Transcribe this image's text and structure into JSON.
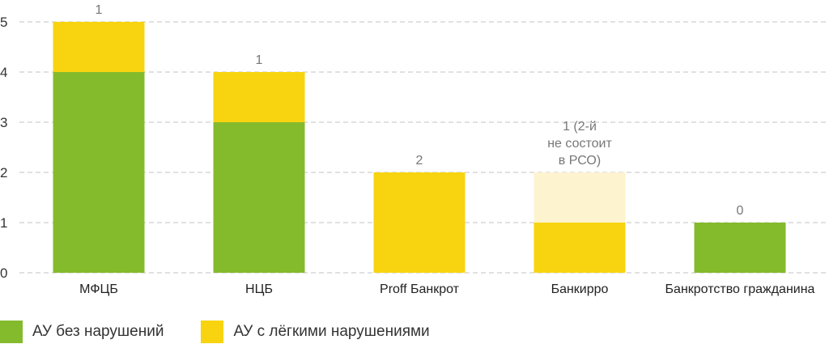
{
  "chart_data": {
    "type": "bar",
    "stacked": true,
    "categories": [
      "МФЦБ",
      "НЦБ",
      "Proff Банкрот",
      "Банкирро",
      "Банкротство гражданина"
    ],
    "series": [
      {
        "name": "АУ без нарушений",
        "values": [
          4,
          3,
          0,
          0,
          1
        ],
        "color": "#84bb2c"
      },
      {
        "name": "АУ с лёгкими нарушениями",
        "values": [
          1,
          1,
          2,
          1,
          0
        ],
        "color": "#f7d40f"
      },
      {
        "values": [
          0,
          0,
          0,
          1,
          0
        ],
        "color": "#fdf3cf"
      }
    ],
    "data_labels": [
      [
        "1"
      ],
      [
        "1"
      ],
      [
        "2"
      ],
      [
        "1 (2-й",
        "не состоит",
        "в РСО)"
      ],
      [
        "0"
      ]
    ],
    "yticks": [
      "0",
      "1",
      "2",
      "3",
      "4",
      "5"
    ],
    "ylim": [
      0,
      5
    ],
    "grid": true,
    "legend_position": "bottom-left",
    "title": "",
    "xlabel": "",
    "ylabel": ""
  }
}
